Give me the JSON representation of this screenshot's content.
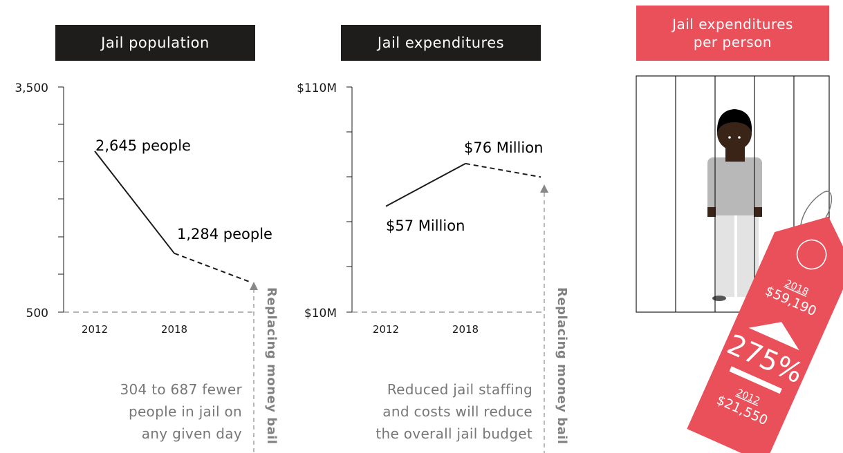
{
  "panels": {
    "population_title": "Jail population",
    "expenditures_title": "Jail expenditures",
    "per_person_title_1": "Jail expenditures",
    "per_person_title_2": "per person"
  },
  "notes": {
    "population": [
      "304 to 687 fewer",
      "people in jail on",
      "any given day"
    ],
    "expenditures": [
      "Reduced jail staffing",
      "and costs will reduce",
      "the overall jail budget"
    ],
    "vertical_label": "Replacing money bail"
  },
  "tag": {
    "year_2018": "2018",
    "value_2018": "$59,190",
    "change": "275%",
    "year_2012": "2012",
    "value_2012": "$21,550"
  },
  "chart_data": [
    {
      "type": "line",
      "title": "Jail population",
      "x": [
        "2012",
        "2018"
      ],
      "y_ticks": [
        "3,500",
        "500"
      ],
      "ylim": [
        500,
        3500
      ],
      "series": [
        {
          "values": [
            2645,
            1284
          ],
          "labels": [
            "2,645 people",
            "1,284 people"
          ]
        }
      ],
      "projection": {
        "from": 1284,
        "to": 900,
        "style": "dashed"
      }
    },
    {
      "type": "line",
      "title": "Jail expenditures",
      "x": [
        "2012",
        "2018"
      ],
      "y_ticks": [
        "$110M",
        "$10M"
      ],
      "ylim": [
        10,
        110
      ],
      "series": [
        {
          "values": [
            57,
            76
          ],
          "labels": [
            "$57 Million",
            "$76 Million"
          ]
        }
      ],
      "projection": {
        "from": 76,
        "to": 70,
        "style": "dashed"
      }
    }
  ]
}
